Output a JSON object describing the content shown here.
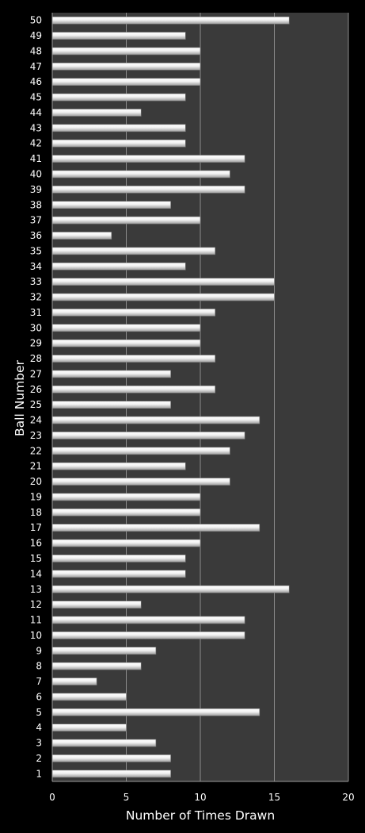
{
  "chart_data": {
    "type": "bar",
    "orientation": "horizontal",
    "xlabel": "Number of Times Drawn",
    "ylabel": "Ball Number",
    "xlim": [
      0,
      20
    ],
    "xticks": [
      0,
      5,
      10,
      15,
      20
    ],
    "grid": "vertical",
    "colors": {
      "page_background": "#000000",
      "plot_background": "#3a3a3a",
      "gridline": "#8c8c8c",
      "bar_fill_light": "#ffffff",
      "bar_fill_dark": "#9c9c9c",
      "text": "#ffffff"
    },
    "categories": [
      "1",
      "2",
      "3",
      "4",
      "5",
      "6",
      "7",
      "8",
      "9",
      "10",
      "11",
      "12",
      "13",
      "14",
      "15",
      "16",
      "17",
      "18",
      "19",
      "20",
      "21",
      "22",
      "23",
      "24",
      "25",
      "26",
      "27",
      "28",
      "29",
      "30",
      "31",
      "32",
      "33",
      "34",
      "35",
      "36",
      "37",
      "38",
      "39",
      "40",
      "41",
      "42",
      "43",
      "44",
      "45",
      "46",
      "47",
      "48",
      "49",
      "50"
    ],
    "values": [
      8,
      8,
      7,
      5,
      14,
      5,
      3,
      6,
      7,
      13,
      13,
      6,
      16,
      9,
      9,
      10,
      14,
      10,
      10,
      12,
      9,
      12,
      13,
      14,
      8,
      11,
      8,
      11,
      10,
      10,
      11,
      15,
      15,
      9,
      11,
      4,
      10,
      8,
      13,
      12,
      13,
      9,
      9,
      6,
      9,
      10,
      10,
      10,
      9,
      16
    ]
  }
}
